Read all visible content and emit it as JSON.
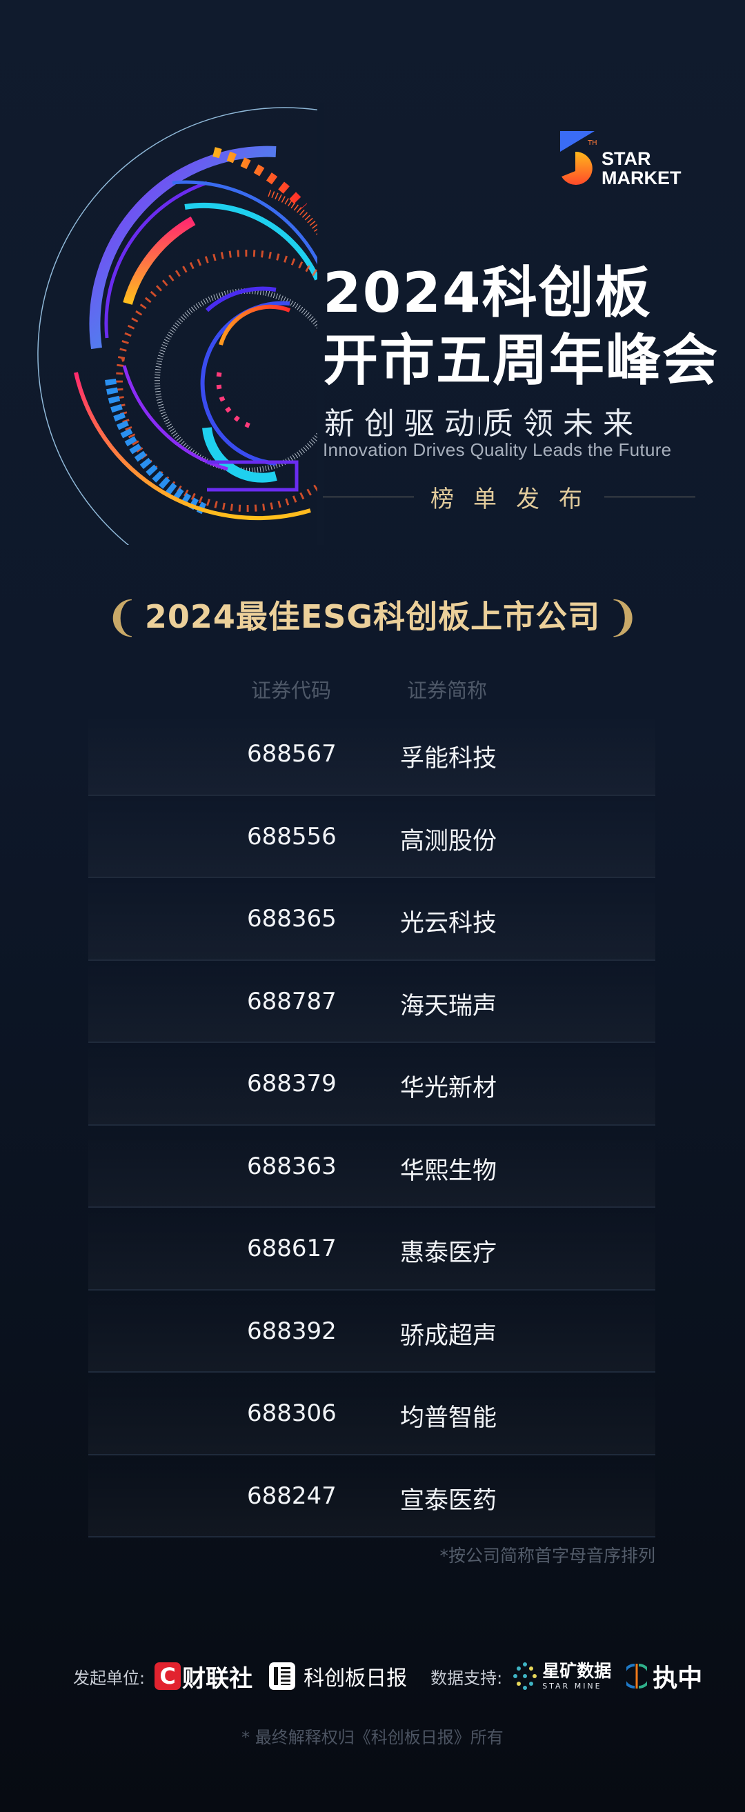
{
  "logo": {
    "text_line1": "STAR",
    "text_line2": "MARKET",
    "superscript": "TH"
  },
  "hero": {
    "title_line1": "2024科创板",
    "title_line2": "开市五周年峰会",
    "slogan_left": "新创驱动",
    "slogan_right": "质领未来",
    "slogan_en": "Innovation Drives Quality Leads the Future",
    "section_label": "榜单发布"
  },
  "award": {
    "title": "2024最佳ESG科创板上市公司"
  },
  "table": {
    "headers": {
      "code": "证券代码",
      "name": "证券简称"
    },
    "rows": [
      {
        "code": "688567",
        "name": "孚能科技"
      },
      {
        "code": "688556",
        "name": "高测股份"
      },
      {
        "code": "688365",
        "name": "光云科技"
      },
      {
        "code": "688787",
        "name": "海天瑞声"
      },
      {
        "code": "688379",
        "name": "华光新材"
      },
      {
        "code": "688363",
        "name": "华熙生物"
      },
      {
        "code": "688617",
        "name": "惠泰医疗"
      },
      {
        "code": "688392",
        "name": "骄成超声"
      },
      {
        "code": "688306",
        "name": "均普智能"
      },
      {
        "code": "688247",
        "name": "宣泰医药"
      }
    ],
    "sort_note": "*按公司简称首字母音序排列"
  },
  "footer": {
    "organizer_label": "发起单位:",
    "organizer1": "财联社",
    "organizer1_mark": "C",
    "organizer2": "科创板日报",
    "support_label": "数据支持:",
    "support1": "星矿数据",
    "support1_en": "STAR MINE",
    "support2": "执中",
    "disclaimer": "* 最终解释权归《科创板日报》所有"
  },
  "colors": {
    "background": "#0e182a",
    "gold": "#ecd09a",
    "accent_red": "#e2232f"
  }
}
